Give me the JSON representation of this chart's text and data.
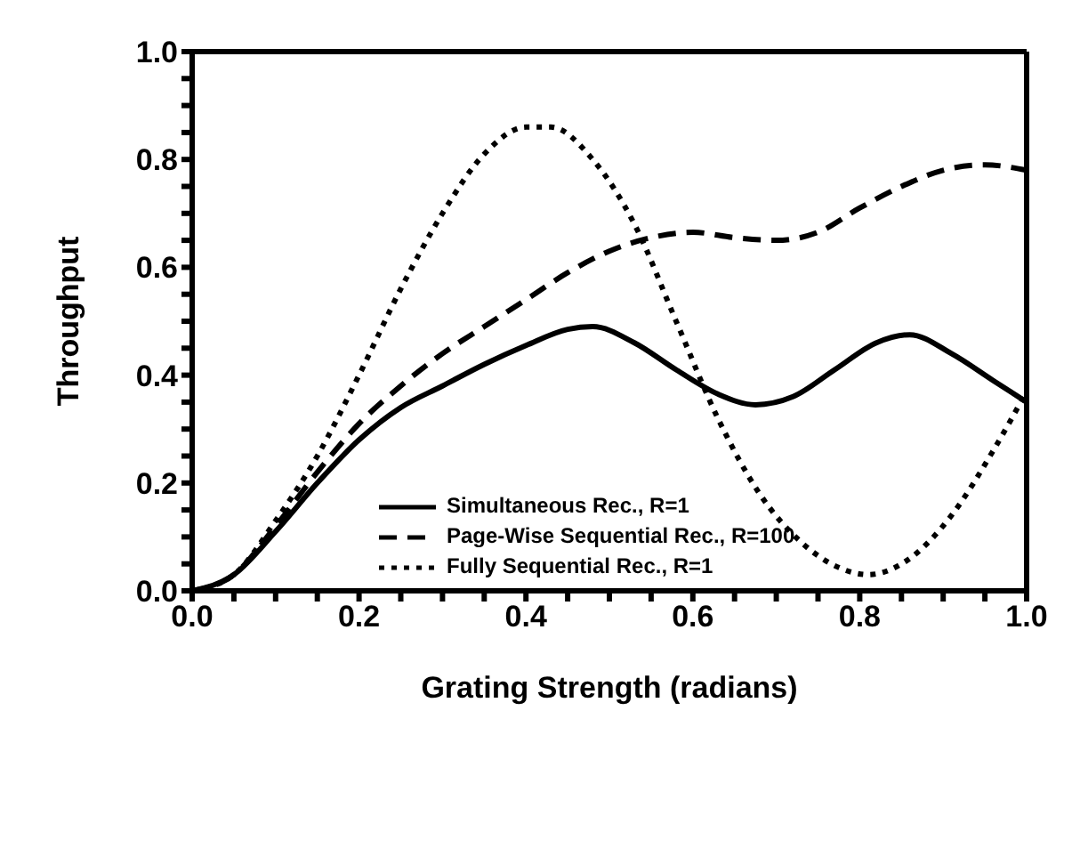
{
  "chart_data": {
    "type": "line",
    "xlabel": "Grating Strength (radians)",
    "ylabel": "Throughput",
    "xlim": [
      0,
      1
    ],
    "ylim": [
      0,
      1
    ],
    "xticks": [
      "0.0",
      {
        "value": 0.05,
        "label": null
      },
      {
        "value": 0.1,
        "label": null
      },
      {
        "value": 0.15,
        "label": null
      },
      {
        "value": 0.2,
        "label": "0.2"
      },
      {
        "value": 0.25,
        "label": null
      },
      {
        "value": 0.3,
        "label": null
      },
      {
        "value": 0.35,
        "label": null
      },
      {
        "value": 0.4,
        "label": "0.4"
      },
      {
        "value": 0.45,
        "label": null
      },
      {
        "value": 0.5,
        "label": null
      },
      {
        "value": 0.55,
        "label": null
      },
      {
        "value": 0.6,
        "label": "0.6"
      },
      {
        "value": 0.65,
        "label": null
      },
      {
        "value": 0.7,
        "label": null
      },
      {
        "value": 0.75,
        "label": null
      },
      {
        "value": 0.8,
        "label": "0.8"
      },
      {
        "value": 0.85,
        "label": null
      },
      {
        "value": 0.9,
        "label": null
      },
      {
        "value": 0.95,
        "label": null
      },
      {
        "value": 1,
        "label": "1.0"
      }
    ],
    "yticks": [
      {
        "value": 0,
        "label": "0.0"
      },
      {
        "value": 0.05,
        "label": null
      },
      {
        "value": 0.1,
        "label": null
      },
      {
        "value": 0.15,
        "label": null
      },
      {
        "value": 0.2,
        "label": "0.2"
      },
      {
        "value": 0.25,
        "label": null
      },
      {
        "value": 0.3,
        "label": null
      },
      {
        "value": 0.35,
        "label": null
      },
      {
        "value": 0.4,
        "label": "0.4"
      },
      {
        "value": 0.45,
        "label": null
      },
      {
        "value": 0.5,
        "label": null
      },
      {
        "value": 0.55,
        "label": null
      },
      {
        "value": 0.6,
        "label": "0.6"
      },
      {
        "value": 0.65,
        "label": null
      },
      {
        "value": 0.7,
        "label": null
      },
      {
        "value": 0.75,
        "label": null
      },
      {
        "value": 0.8,
        "label": "0.8"
      },
      {
        "value": 0.85,
        "label": null
      },
      {
        "value": 0.9,
        "label": null
      },
      {
        "value": 0.95,
        "label": null
      },
      {
        "value": 1,
        "label": "1.0"
      }
    ],
    "legend": "bottom",
    "marker": "none",
    "series": [
      {
        "name": "Simultaneous Rec., R=1",
        "color": "#000000",
        "line_style": "solid",
        "x": [
          0,
          0.05,
          0.1,
          0.15,
          0.2,
          0.25,
          0.3,
          0.35,
          0.4,
          0.45,
          0.48,
          0.53,
          0.58,
          0.63,
          0.675,
          0.72,
          0.77,
          0.82,
          0.86,
          0.91,
          0.96,
          1.0
        ],
        "values": [
          0,
          0.03,
          0.11,
          0.2,
          0.28,
          0.34,
          0.38,
          0.42,
          0.455,
          0.485,
          0.49,
          0.46,
          0.41,
          0.365,
          0.345,
          0.36,
          0.41,
          0.46,
          0.475,
          0.44,
          0.39,
          0.35
        ]
      },
      {
        "name": "Page-Wise Sequential Rec., R=100",
        "color": "#000000",
        "line_style": "dashed",
        "x": [
          0,
          0.05,
          0.1,
          0.15,
          0.2,
          0.25,
          0.3,
          0.35,
          0.4,
          0.45,
          0.5,
          0.55,
          0.6,
          0.65,
          0.7,
          0.75,
          0.8,
          0.85,
          0.9,
          0.95,
          1.0
        ],
        "values": [
          0,
          0.03,
          0.12,
          0.22,
          0.31,
          0.38,
          0.44,
          0.49,
          0.54,
          0.59,
          0.63,
          0.655,
          0.665,
          0.655,
          0.65,
          0.665,
          0.71,
          0.75,
          0.78,
          0.79,
          0.78
        ]
      },
      {
        "name": "Fully Sequential Rec., R=1",
        "color": "#000000",
        "line_style": "dotted",
        "x": [
          0,
          0.05,
          0.1,
          0.15,
          0.2,
          0.25,
          0.3,
          0.35,
          0.4,
          0.43,
          0.48,
          0.53,
          0.58,
          0.63,
          0.68,
          0.73,
          0.78,
          0.81,
          0.86,
          0.91,
          0.96,
          1.0
        ],
        "values": [
          0,
          0.03,
          0.13,
          0.25,
          0.4,
          0.56,
          0.7,
          0.81,
          0.86,
          0.86,
          0.8,
          0.68,
          0.5,
          0.32,
          0.18,
          0.09,
          0.04,
          0.03,
          0.06,
          0.14,
          0.26,
          0.37
        ]
      }
    ]
  }
}
